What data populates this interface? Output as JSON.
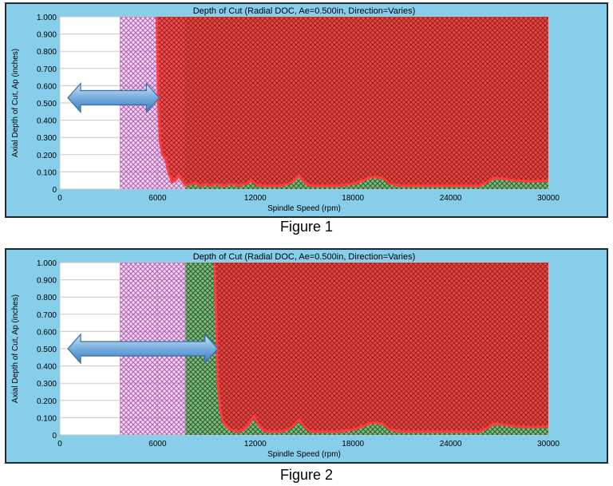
{
  "colors": {
    "panel_bg": "#87ceeb",
    "plot_bg": "#ffffff",
    "grid": "#c8c8c8",
    "unstable_fill": "#e23b3b",
    "boundary_line": "#ff3b3b",
    "magenta_region": "#d98ad9",
    "green_region": "#3a9a3a",
    "arrow": "#6fa8dc"
  },
  "figures": [
    {
      "caption": "Figure 1",
      "arrow_icon": "double-arrow-icon",
      "arrow_span_rpm": [
        0,
        6000
      ],
      "arrow_level_in": 0.53
    },
    {
      "caption": "Figure 2",
      "arrow_icon": "double-arrow-icon",
      "arrow_span_rpm": [
        0,
        9600
      ],
      "arrow_level_in": 0.5
    }
  ],
  "chart_data": [
    {
      "type": "area",
      "title": "Depth of Cut (Radial DOC, Ae=0.500in, Direction=Varies)",
      "xlabel": "Spindle Speed (rpm)",
      "ylabel": "Axial Depth of Cut, Ap (inches)",
      "xlim": [
        0,
        30000
      ],
      "ylim": [
        0,
        1.0
      ],
      "x_ticks": [
        "0",
        "6000",
        "12000",
        "18000",
        "24000",
        "30000"
      ],
      "y_ticks": [
        "0",
        "0.100",
        "0.200",
        "0.300",
        "0.400",
        "0.500",
        "0.600",
        "0.700",
        "0.800",
        "0.900",
        "1.000"
      ],
      "grid": true,
      "regions": {
        "magenta_curve": {
          "k": 2270000000,
          "x_start": 3700
        },
        "green_start_rpm": 7700,
        "green_vertical_rpm": 7700
      },
      "series": [
        {
          "x": [
            5950,
            6050,
            6150,
            6300,
            6500,
            6700,
            6900,
            7100,
            7300,
            7500,
            7700,
            7900,
            8100,
            8300,
            8500,
            8700,
            9000,
            9300,
            9600,
            10000,
            10500,
            11000,
            11500,
            11800,
            12100,
            12500,
            13000,
            13500,
            14000,
            14400,
            14700,
            15000,
            15400,
            16000,
            17000,
            18000,
            18600,
            19100,
            19500,
            19900,
            20300,
            21000,
            22000,
            23000,
            24000,
            25000,
            25800,
            26200,
            26700,
            27200,
            28000,
            29000,
            30000
          ],
          "values": [
            1.0,
            0.5,
            0.28,
            0.2,
            0.17,
            0.09,
            0.04,
            0.05,
            0.08,
            0.05,
            0.025,
            0.025,
            0.03,
            0.04,
            0.025,
            0.02,
            0.03,
            0.02,
            0.03,
            0.02,
            0.03,
            0.02,
            0.035,
            0.05,
            0.025,
            0.02,
            0.02,
            0.02,
            0.03,
            0.05,
            0.08,
            0.04,
            0.02,
            0.02,
            0.02,
            0.03,
            0.05,
            0.07,
            0.07,
            0.06,
            0.03,
            0.02,
            0.02,
            0.02,
            0.02,
            0.02,
            0.02,
            0.04,
            0.065,
            0.06,
            0.05,
            0.045,
            0.05
          ]
        }
      ]
    },
    {
      "type": "area",
      "title": "Depth of Cut (Radial DOC, Ae=0.500in, Direction=Varies)",
      "xlabel": "Spindle Speed (rpm)",
      "ylabel": "Axial Depth of Cut, Ap (inches)",
      "xlim": [
        0,
        30000
      ],
      "ylim": [
        0,
        1.0
      ],
      "x_ticks": [
        "0",
        "6000",
        "12000",
        "18000",
        "24000",
        "30000"
      ],
      "y_ticks": [
        "0",
        "0.100",
        "0.200",
        "0.300",
        "0.400",
        "0.500",
        "0.600",
        "0.700",
        "0.800",
        "0.900",
        "1.000"
      ],
      "grid": true,
      "regions": {
        "magenta_curve": {
          "k": 2270000000,
          "x_start": 3700
        },
        "green_start_rpm": 7700,
        "green_vertical_rpm": 7700
      },
      "series": [
        {
          "x": [
            9500,
            9600,
            9700,
            9850,
            10000,
            10200,
            10500,
            10900,
            11300,
            11600,
            11900,
            12200,
            12500,
            13000,
            13500,
            14000,
            14400,
            14700,
            15000,
            15400,
            16000,
            17000,
            18000,
            18600,
            19100,
            19500,
            19900,
            20300,
            21000,
            22000,
            23000,
            24000,
            25000,
            25800,
            26200,
            26700,
            27200,
            28000,
            29000,
            30000
          ],
          "values": [
            1.0,
            0.7,
            0.3,
            0.15,
            0.08,
            0.05,
            0.03,
            0.02,
            0.03,
            0.06,
            0.11,
            0.06,
            0.025,
            0.02,
            0.02,
            0.03,
            0.06,
            0.09,
            0.05,
            0.02,
            0.02,
            0.02,
            0.03,
            0.05,
            0.07,
            0.07,
            0.06,
            0.03,
            0.02,
            0.02,
            0.02,
            0.02,
            0.02,
            0.02,
            0.04,
            0.065,
            0.06,
            0.05,
            0.045,
            0.05
          ]
        }
      ]
    }
  ]
}
